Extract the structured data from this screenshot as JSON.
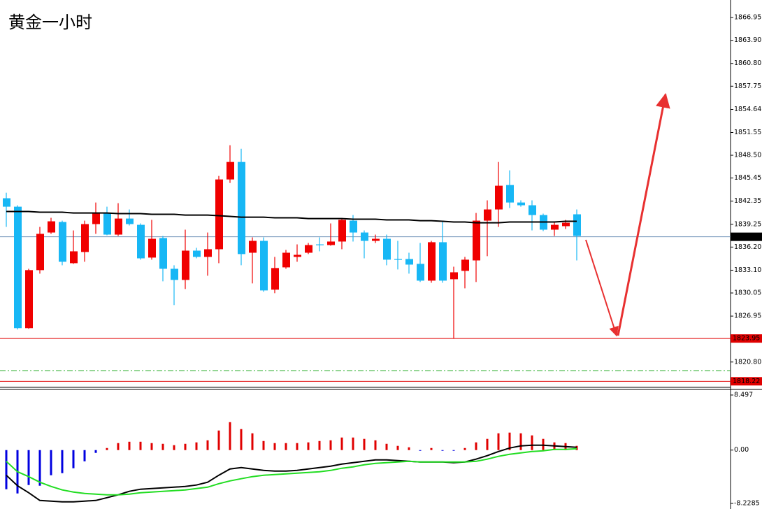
{
  "chart_data": [
    {
      "type": "candlestick",
      "title": "黄金一小时",
      "title_color": "#ff2a2a",
      "ylim": [
        1817.5,
        1869.3
      ],
      "yticks": [
        1866.95,
        {
          "value": 1863.9,
          "label": "1863.90"
        },
        {
          "value": 1860.8,
          "label": "1860.80"
        },
        1857.75,
        1854.64,
        1851.55,
        {
          "value": 1848.5,
          "label": "1848.50"
        },
        1845.45,
        1842.35,
        1839.25,
        {
          "value": 1836.2,
          "label": "1836.20"
        },
        {
          "value": 1833.1,
          "label": "1833.10"
        },
        1830.05,
        1826.95,
        {
          "value": 1820.8,
          "label": "1820.80"
        }
      ],
      "up_color": "#f00000",
      "down_color": "#17b7f5",
      "open": [
        1842.74,
        1841.61,
        1825.34,
        1833.11,
        1838.15,
        1839.56,
        1834.04,
        1835.54,
        1839.28,
        1840.77,
        1837.87,
        1840.02,
        1839.18,
        1834.79,
        1837.41,
        1833.29,
        1831.8,
        1835.72,
        1834.88,
        1835.91,
        1845.26,
        1847.6,
        1835.44,
        1837.03,
        1830.49,
        1833.48,
        1834.88,
        1835.44,
        1836.56,
        1836.47,
        1836.94,
        1839.74,
        1838.15,
        1837.03,
        1837.31,
        1834.6,
        1834.6,
        1833.95,
        1831.7,
        1836.85,
        1831.89,
        1833.01,
        1834.41,
        1839.74,
        1841.24,
        1844.51,
        1842.17,
        1841.8,
        1840.49,
        1838.53,
        1839.0,
        1840.59
      ],
      "high": [
        1843.48,
        1841.8,
        1833.29,
        1838.9,
        1840.12,
        1839.74,
        1838.43,
        1839.74,
        1842.17,
        1841.61,
        1842.08,
        1841.24,
        1839.37,
        1839.84,
        1837.69,
        1833.76,
        1838.53,
        1836.1,
        1838.15,
        1845.73,
        1849.84,
        1849.37,
        1837.5,
        1837.5,
        1834.88,
        1835.82,
        1836.56,
        1836.75,
        1837.5,
        1839.37,
        1840.02,
        1840.49,
        1838.43,
        1837.87,
        1837.87,
        1837.03,
        1835.44,
        1836.75,
        1837.03,
        1839.56,
        1833.57,
        1834.88,
        1840.77,
        1842.46,
        1847.6,
        1846.48,
        1842.46,
        1842.46,
        1840.68,
        1839.56,
        1839.84,
        1841.24
      ],
      "low": [
        1838.9,
        1825.16,
        1825.25,
        1832.64,
        1837.97,
        1833.76,
        1833.95,
        1834.23,
        1837.97,
        1837.78,
        1837.69,
        1839.09,
        1834.51,
        1834.51,
        1831.61,
        1828.43,
        1830.58,
        1834.69,
        1832.36,
        1834.04,
        1844.79,
        1833.76,
        1831.33,
        1830.21,
        1830.02,
        1833.29,
        1834.23,
        1835.26,
        1835.63,
        1836.38,
        1835.91,
        1836.94,
        1834.69,
        1836.75,
        1833.76,
        1833.2,
        1832.64,
        1831.52,
        1831.42,
        1831.42,
        1823.95,
        1830.67,
        1831.52,
        1834.98,
        1838.9,
        1841.43,
        1841.61,
        1838.43,
        1838.34,
        1837.69,
        1838.62,
        1834.41
      ],
      "close": [
        1841.61,
        1825.34,
        1833.11,
        1837.97,
        1839.65,
        1834.23,
        1835.63,
        1839.28,
        1840.77,
        1837.87,
        1840.02,
        1839.28,
        1834.69,
        1837.31,
        1833.29,
        1831.8,
        1835.72,
        1834.88,
        1835.91,
        1845.26,
        1847.6,
        1835.26,
        1837.03,
        1830.39,
        1833.39,
        1835.44,
        1835.16,
        1836.47,
        1836.47,
        1836.94,
        1839.84,
        1838.15,
        1837.03,
        1837.31,
        1834.51,
        1834.6,
        1833.85,
        1831.7,
        1836.85,
        1831.7,
        1832.82,
        1834.51,
        1839.74,
        1841.24,
        1844.42,
        1842.17,
        1841.8,
        1840.49,
        1838.53,
        1839.18,
        1839.46,
        1837.69
      ],
      "ma": {
        "color": "#000000",
        "values": [
          1840.96,
          1840.96,
          1840.96,
          1840.87,
          1840.87,
          1840.87,
          1840.77,
          1840.77,
          1840.77,
          1840.77,
          1840.68,
          1840.68,
          1840.68,
          1840.59,
          1840.59,
          1840.59,
          1840.49,
          1840.49,
          1840.49,
          1840.4,
          1840.31,
          1840.21,
          1840.21,
          1840.21,
          1840.12,
          1840.12,
          1840.12,
          1840.02,
          1840.02,
          1840.02,
          1840.02,
          1839.93,
          1839.93,
          1839.93,
          1839.84,
          1839.84,
          1839.84,
          1839.74,
          1839.74,
          1839.65,
          1839.56,
          1839.56,
          1839.46,
          1839.46,
          1839.46,
          1839.56,
          1839.56,
          1839.56,
          1839.56,
          1839.56,
          1839.65,
          1839.65
        ]
      },
      "price_labels": [
        {
          "value": 1837.58,
          "box_color": "#000000",
          "line_color": "#6f93b8"
        },
        {
          "value": 1823.95,
          "box_color": "#e00000",
          "line_color": "#e00000"
        },
        {
          "value": 1818.22,
          "box_color": "#e00000",
          "line_color": "#e00000"
        }
      ],
      "levels": [
        {
          "value": 1819.64,
          "color": "#22aa22",
          "dash": "8 3 2 3"
        }
      ]
    },
    {
      "type": "macd",
      "ylim": [
        -9.09,
        9.25
      ],
      "yticks": [
        8.497,
        {
          "value": 0,
          "label": "0.00"
        },
        -8.2285
      ],
      "histogram": {
        "pos_color": "#e00000",
        "neg_color": "#0000e0",
        "values": [
          -6.04,
          -6.69,
          -5.39,
          -5.5,
          -3.88,
          -3.56,
          -2.8,
          -1.73,
          -0.43,
          0.32,
          1.08,
          1.29,
          1.29,
          1.08,
          0.97,
          0.76,
          0.97,
          1.19,
          1.51,
          3.02,
          4.31,
          3.24,
          2.59,
          1.4,
          1.08,
          1.08,
          1.08,
          1.19,
          1.4,
          1.51,
          1.94,
          1.94,
          1.73,
          1.51,
          0.97,
          0.65,
          0.43,
          -0.11,
          0.32,
          -0.11,
          -0.11,
          0.32,
          1.19,
          1.73,
          2.59,
          2.7,
          2.59,
          2.27,
          1.73,
          1.19,
          1.08,
          0.65
        ]
      },
      "series": [
        {
          "color": "#000000",
          "values": [
            -3.88,
            -5.5,
            -6.58,
            -7.77,
            -7.87,
            -7.98,
            -7.98,
            -7.87,
            -7.77,
            -7.34,
            -6.9,
            -6.36,
            -6.04,
            -5.93,
            -5.83,
            -5.72,
            -5.61,
            -5.39,
            -4.96,
            -3.88,
            -2.91,
            -2.7,
            -2.91,
            -3.13,
            -3.24,
            -3.24,
            -3.13,
            -2.91,
            -2.7,
            -2.48,
            -2.16,
            -1.94,
            -1.73,
            -1.51,
            -1.51,
            -1.62,
            -1.73,
            -1.83,
            -1.83,
            -1.83,
            -1.94,
            -1.83,
            -1.4,
            -0.86,
            -0.22,
            0.32,
            0.65,
            0.76,
            0.76,
            0.65,
            0.54,
            0.43
          ]
        },
        {
          "color": "#22dd22",
          "values": [
            -1.73,
            -3.34,
            -4.1,
            -4.96,
            -5.61,
            -6.15,
            -6.47,
            -6.69,
            -6.8,
            -6.9,
            -6.9,
            -6.8,
            -6.58,
            -6.47,
            -6.36,
            -6.26,
            -6.15,
            -5.93,
            -5.72,
            -5.18,
            -4.75,
            -4.42,
            -4.1,
            -3.88,
            -3.78,
            -3.67,
            -3.56,
            -3.45,
            -3.34,
            -3.13,
            -2.8,
            -2.59,
            -2.27,
            -2.05,
            -1.94,
            -1.83,
            -1.73,
            -1.83,
            -1.83,
            -1.83,
            -1.83,
            -1.83,
            -1.73,
            -1.4,
            -0.97,
            -0.65,
            -0.43,
            -0.22,
            -0.11,
            0.11,
            0.11,
            0.22
          ]
        }
      ]
    }
  ]
}
